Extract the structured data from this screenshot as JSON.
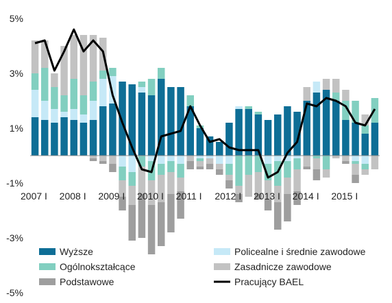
{
  "chart_data": {
    "type": "bar",
    "stacked": true,
    "title": "",
    "xlabel": "",
    "ylabel": "",
    "ylim": [
      -5,
      5
    ],
    "y_ticks": [
      5,
      3,
      1,
      -1,
      -3,
      -5
    ],
    "y_tick_labels": [
      "5%",
      "3%",
      "1%",
      "-1%",
      "-3%",
      "-5%"
    ],
    "x_tick_labels": [
      "2007 I",
      "2008 I",
      "2009 I",
      "2010 I",
      "2011 I",
      "2012 I",
      "2013 I",
      "2014 I",
      "2015 I"
    ],
    "x_tick_every": 4,
    "grid": false,
    "legend_position": "bottom",
    "series": [
      {
        "name": "Wyższe",
        "color": "#0e6e96",
        "values": [
          1.4,
          1.3,
          1.2,
          1.4,
          1.3,
          1.2,
          1.3,
          1.8,
          1.9,
          2.7,
          2.6,
          2.3,
          2.2,
          2.8,
          2.5,
          2.5,
          1.8,
          1.0,
          0.7,
          0.5,
          1.2,
          1.7,
          1.7,
          1.5,
          1.3,
          1.5,
          1.8,
          1.6,
          2.0,
          2.3,
          2.4,
          2.0,
          1.3,
          1.2,
          0.8,
          1.2
        ]
      },
      {
        "name": "Policealne i średnie zawodowe",
        "color": "#c6e9f7",
        "values": [
          1.0,
          0.7,
          0.5,
          0.2,
          0.4,
          0.3,
          0.7,
          1.0,
          1.0,
          0.0,
          0.0,
          0.2,
          0.0,
          0.0,
          0.0,
          0.0,
          0.0,
          0.0,
          0.0,
          0.0,
          0.0,
          0.1,
          0.0,
          0.0,
          0.0,
          0.0,
          0.0,
          0.0,
          0.0,
          0.4,
          0.0,
          0.0,
          0.0,
          0.0,
          0.0,
          0.0
        ]
      },
      {
        "name": "Ogólnokształcące",
        "color": "#82cfc0",
        "values": [
          0.6,
          1.2,
          0.8,
          0.6,
          1.1,
          0.7,
          0.7,
          0.3,
          0.3,
          0.0,
          0.0,
          0.2,
          0.6,
          0.4,
          0.0,
          0.0,
          0.4,
          0.1,
          0.0,
          0.0,
          0.0,
          0.0,
          0.1,
          0.1,
          0.0,
          0.0,
          0.0,
          0.0,
          0.0,
          0.0,
          0.0,
          0.3,
          0.7,
          0.8,
          0.3,
          0.9
        ]
      },
      {
        "name": "Zasadnicze zawodowe",
        "color": "#c2c2c2",
        "values": [
          1.2,
          1.0,
          0.5,
          1.8,
          1.6,
          2.2,
          1.7,
          1.2,
          0.0,
          0.0,
          0.0,
          0.0,
          0.0,
          0.0,
          0.0,
          0.0,
          0.0,
          0.0,
          0.0,
          0.0,
          0.0,
          0.0,
          0.0,
          0.0,
          0.0,
          0.0,
          0.0,
          0.0,
          0.5,
          0.0,
          0.4,
          0.5,
          0.4,
          0.0,
          0.4,
          0.0
        ]
      },
      {
        "name": "Podstawowe",
        "color": "#9e9e9e",
        "values": [
          0.0,
          0.0,
          0.0,
          0.0,
          0.0,
          0.0,
          0.0,
          0.0,
          0.0,
          0.0,
          0.0,
          0.0,
          0.0,
          0.0,
          0.0,
          0.0,
          0.0,
          0.0,
          0.0,
          0.0,
          0.0,
          0.0,
          0.0,
          0.0,
          0.0,
          0.0,
          0.0,
          0.0,
          0.0,
          0.0,
          0.0,
          0.0,
          0.0,
          0.0,
          0.0,
          0.0
        ]
      }
    ],
    "negative_series": [
      {
        "name": "Wyższe",
        "color": "#0e6e96",
        "values": [
          0,
          0,
          0,
          0,
          0,
          0,
          0,
          0,
          0,
          0,
          0,
          0,
          0,
          0,
          0,
          0,
          0,
          0,
          0,
          0,
          0,
          0,
          0,
          0,
          0,
          0,
          0,
          0,
          0,
          0,
          0,
          0,
          0,
          0,
          0,
          0
        ]
      },
      {
        "name": "Policealne i średnie zawodowe",
        "color": "#c6e9f7",
        "values": [
          0,
          0,
          0,
          0,
          0,
          0,
          0,
          0,
          0,
          -0.4,
          -0.6,
          0,
          -0.2,
          -0.3,
          -0.2,
          -0.3,
          0,
          -0.1,
          -0.1,
          -0.3,
          -0.3,
          0,
          0,
          0,
          -0.3,
          -0.2,
          -0.2,
          -0.1,
          0,
          0,
          0,
          0,
          0,
          -0.2,
          -0.3,
          0
        ]
      },
      {
        "name": "Ogólnokształcące",
        "color": "#82cfc0",
        "values": [
          0,
          0,
          0,
          0,
          0,
          0,
          0,
          0,
          0,
          -0.5,
          -0.5,
          -0.4,
          -0.7,
          -0.4,
          -0.4,
          -0.5,
          0,
          -0.1,
          0,
          0,
          -0.4,
          -1.1,
          -0.7,
          -0.6,
          -0.6,
          -0.9,
          -0.6,
          -0.4,
          0,
          -0.1,
          -0.5,
          0,
          0,
          -0.1,
          -0.2,
          0
        ]
      },
      {
        "name": "Zasadnicze zawodowe",
        "color": "#c2c2c2",
        "values": [
          0,
          0,
          0,
          0,
          0,
          0,
          -0.1,
          -0.2,
          -0.3,
          -0.6,
          -0.7,
          -1.0,
          -0.9,
          -1.0,
          -0.8,
          -0.5,
          -0.2,
          -0.2,
          -0.2,
          -0.2,
          -0.2,
          -0.3,
          -0.8,
          -0.8,
          -0.7,
          -0.6,
          -0.6,
          -0.8,
          -0.4,
          -0.4,
          -0.3,
          -0.1,
          -0.2,
          -0.4,
          -0.2,
          -0.5
        ]
      },
      {
        "name": "Podstawowe",
        "color": "#9e9e9e",
        "values": [
          0,
          0,
          0,
          0,
          0,
          0,
          -0.1,
          -0.1,
          -0.3,
          -0.5,
          -1.3,
          -1.6,
          -1.8,
          -1.6,
          -1.4,
          -1.0,
          -0.3,
          -0.1,
          -0.2,
          -0.2,
          -0.3,
          -0.3,
          0,
          -0.2,
          -0.4,
          -1.0,
          -1.0,
          -0.5,
          -0.1,
          -0.4,
          0,
          0,
          -0.1,
          -0.3,
          0,
          0
        ]
      }
    ],
    "line": {
      "name": "Pracujący BAEL",
      "color": "#000000",
      "values": [
        4.1,
        4.2,
        3.1,
        3.8,
        4.6,
        3.8,
        4.2,
        3.8,
        2.2,
        1.2,
        0.3,
        -0.5,
        -0.6,
        0.7,
        0.8,
        0.9,
        1.8,
        1.1,
        0.5,
        0.6,
        0.3,
        0.2,
        0.2,
        0.2,
        -0.8,
        -0.6,
        0.1,
        0.5,
        1.9,
        1.8,
        2.1,
        2.0,
        1.8,
        1.2,
        1.1,
        1.7
      ]
    }
  }
}
